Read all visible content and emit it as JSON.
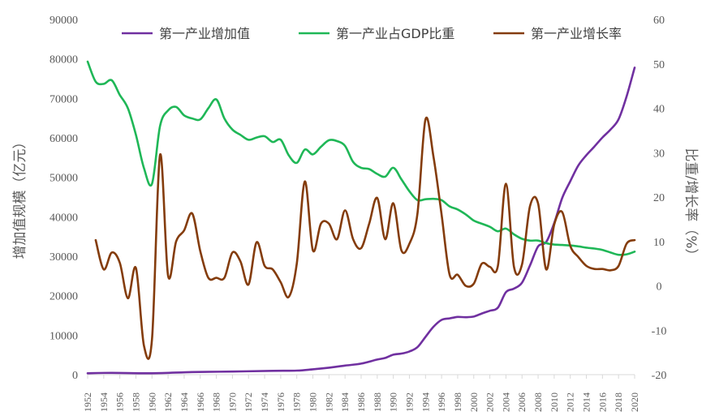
{
  "chart_data": {
    "type": "line",
    "xlabel": "",
    "ylabel_left": "增加值规模（亿元）",
    "ylabel_right": "比重/增长率（%）",
    "ylim_left": [
      0,
      90000
    ],
    "ylim_right": [
      -20,
      60
    ],
    "left_ticks": [
      0,
      10000,
      20000,
      30000,
      40000,
      50000,
      60000,
      70000,
      80000,
      90000
    ],
    "right_ticks": [
      -20,
      -10,
      0,
      10,
      20,
      30,
      40,
      50,
      60
    ],
    "xlim": [
      1952,
      2020
    ],
    "x_tick_labels": [
      "1952",
      "1954",
      "1956",
      "1958",
      "1960",
      "1962",
      "1964",
      "1966",
      "1968",
      "1970",
      "1972",
      "1974",
      "1976",
      "1978",
      "1980",
      "1982",
      "1984",
      "1986",
      "1988",
      "1990",
      "1992",
      "1994",
      "1996",
      "1998",
      "2000",
      "2002",
      "2004",
      "2006",
      "2008",
      "2010",
      "2012",
      "2014",
      "2016",
      "2018",
      "2020"
    ],
    "legend_position": "top",
    "grid": false,
    "series": [
      {
        "name": "第一产业增加值",
        "axis": "left",
        "color": "#7030A0",
        "points": [
          [
            1952,
            342
          ],
          [
            1955,
            450
          ],
          [
            1960,
            340
          ],
          [
            1965,
            650
          ],
          [
            1970,
            790
          ],
          [
            1975,
            970
          ],
          [
            1978,
            1020
          ],
          [
            1980,
            1360
          ],
          [
            1982,
            1760
          ],
          [
            1984,
            2300
          ],
          [
            1986,
            2790
          ],
          [
            1988,
            3830
          ],
          [
            1989,
            4230
          ],
          [
            1990,
            5060
          ],
          [
            1991,
            5340
          ],
          [
            1992,
            5870
          ],
          [
            1993,
            6960
          ],
          [
            1994,
            9570
          ],
          [
            1995,
            12140
          ],
          [
            1996,
            13880
          ],
          [
            1997,
            14270
          ],
          [
            1998,
            14620
          ],
          [
            1999,
            14550
          ],
          [
            2000,
            14720
          ],
          [
            2001,
            15500
          ],
          [
            2002,
            16200
          ],
          [
            2003,
            16970
          ],
          [
            2004,
            20900
          ],
          [
            2005,
            21800
          ],
          [
            2006,
            23300
          ],
          [
            2007,
            27700
          ],
          [
            2008,
            32500
          ],
          [
            2009,
            33600
          ],
          [
            2010,
            38400
          ],
          [
            2011,
            44800
          ],
          [
            2012,
            49000
          ],
          [
            2013,
            53000
          ],
          [
            2014,
            55600
          ],
          [
            2015,
            57800
          ],
          [
            2016,
            60100
          ],
          [
            2017,
            62100
          ],
          [
            2018,
            64700
          ],
          [
            2019,
            70500
          ],
          [
            2020,
            77800
          ]
        ]
      },
      {
        "name": "第一产业占GDP比重",
        "axis": "right",
        "color": "#1FB757",
        "points": [
          [
            1952,
            50.5
          ],
          [
            1953,
            46
          ],
          [
            1954,
            45.5
          ],
          [
            1955,
            46.3
          ],
          [
            1956,
            43
          ],
          [
            1957,
            40
          ],
          [
            1958,
            34
          ],
          [
            1959,
            26.5
          ],
          [
            1960,
            23
          ],
          [
            1961,
            36
          ],
          [
            1962,
            39.5
          ],
          [
            1963,
            40.3
          ],
          [
            1964,
            38.4
          ],
          [
            1965,
            37.7
          ],
          [
            1966,
            37.5
          ],
          [
            1967,
            40
          ],
          [
            1968,
            42
          ],
          [
            1969,
            37.7
          ],
          [
            1970,
            35.2
          ],
          [
            1971,
            34
          ],
          [
            1972,
            32.9
          ],
          [
            1973,
            33.4
          ],
          [
            1974,
            33.7
          ],
          [
            1975,
            32.4
          ],
          [
            1976,
            32.9
          ],
          [
            1977,
            29.4
          ],
          [
            1978,
            27.7
          ],
          [
            1979,
            30.7
          ],
          [
            1980,
            29.6
          ],
          [
            1981,
            31.3
          ],
          [
            1982,
            32.8
          ],
          [
            1983,
            32.6
          ],
          [
            1984,
            31.5
          ],
          [
            1985,
            27.9
          ],
          [
            1986,
            26.6
          ],
          [
            1987,
            26.3
          ],
          [
            1988,
            25.2
          ],
          [
            1989,
            24.6
          ],
          [
            1990,
            26.6
          ],
          [
            1991,
            24.0
          ],
          [
            1992,
            21.3
          ],
          [
            1993,
            19.3
          ],
          [
            1994,
            19.5
          ],
          [
            1995,
            19.6
          ],
          [
            1996,
            19.3
          ],
          [
            1997,
            17.9
          ],
          [
            1998,
            17.2
          ],
          [
            1999,
            16.1
          ],
          [
            2000,
            14.7
          ],
          [
            2001,
            14.0
          ],
          [
            2002,
            13.3
          ],
          [
            2003,
            12.3
          ],
          [
            2004,
            12.9
          ],
          [
            2005,
            11.6
          ],
          [
            2006,
            10.6
          ],
          [
            2007,
            10.2
          ],
          [
            2008,
            10.2
          ],
          [
            2009,
            9.6
          ],
          [
            2010,
            9.3
          ],
          [
            2011,
            9.2
          ],
          [
            2012,
            9.1
          ],
          [
            2013,
            8.9
          ],
          [
            2014,
            8.6
          ],
          [
            2015,
            8.4
          ],
          [
            2016,
            8.1
          ],
          [
            2017,
            7.5
          ],
          [
            2018,
            7.0
          ],
          [
            2019,
            7.1
          ],
          [
            2020,
            7.7
          ]
        ]
      },
      {
        "name": "第一产业增长率",
        "axis": "right",
        "color": "#843C0C",
        "points": [
          [
            1953,
            10.3
          ],
          [
            1954,
            3.7
          ],
          [
            1955,
            7.5
          ],
          [
            1956,
            5.2
          ],
          [
            1957,
            -2.8
          ],
          [
            1958,
            4
          ],
          [
            1959,
            -13.5
          ],
          [
            1960,
            -12
          ],
          [
            1961,
            29.5
          ],
          [
            1962,
            2.3
          ],
          [
            1963,
            10
          ],
          [
            1964,
            12.5
          ],
          [
            1965,
            16.3
          ],
          [
            1966,
            7.8
          ],
          [
            1967,
            1.8
          ],
          [
            1968,
            1.8
          ],
          [
            1969,
            1.8
          ],
          [
            1970,
            7.5
          ],
          [
            1971,
            5.5
          ],
          [
            1972,
            0.3
          ],
          [
            1973,
            9.8
          ],
          [
            1974,
            4.5
          ],
          [
            1975,
            3.7
          ],
          [
            1976,
            0.8
          ],
          [
            1977,
            -2.5
          ],
          [
            1978,
            5
          ],
          [
            1979,
            23.5
          ],
          [
            1980,
            8
          ],
          [
            1981,
            14
          ],
          [
            1982,
            14
          ],
          [
            1983,
            10.5
          ],
          [
            1984,
            17
          ],
          [
            1985,
            10.5
          ],
          [
            1986,
            8.5
          ],
          [
            1987,
            14
          ],
          [
            1988,
            19.8
          ],
          [
            1989,
            10.5
          ],
          [
            1990,
            18.6
          ],
          [
            1991,
            8
          ],
          [
            1992,
            9.5
          ],
          [
            1993,
            16.3
          ],
          [
            1994,
            37.5
          ],
          [
            1995,
            29
          ],
          [
            1996,
            16.1
          ],
          [
            1997,
            2.5
          ],
          [
            1998,
            2.5
          ],
          [
            1999,
            0
          ],
          [
            2000,
            0.5
          ],
          [
            2001,
            5
          ],
          [
            2002,
            4.3
          ],
          [
            2003,
            4.5
          ],
          [
            2004,
            23
          ],
          [
            2005,
            4.3
          ],
          [
            2006,
            4.8
          ],
          [
            2007,
            18
          ],
          [
            2008,
            18.5
          ],
          [
            2009,
            3.7
          ],
          [
            2010,
            13.8
          ],
          [
            2011,
            16.6
          ],
          [
            2012,
            9
          ],
          [
            2013,
            6.5
          ],
          [
            2014,
            4.5
          ],
          [
            2015,
            3.8
          ],
          [
            2016,
            3.8
          ],
          [
            2017,
            3.5
          ],
          [
            2018,
            4.5
          ],
          [
            2019,
            9.5
          ],
          [
            2020,
            10.3
          ]
        ]
      }
    ]
  }
}
